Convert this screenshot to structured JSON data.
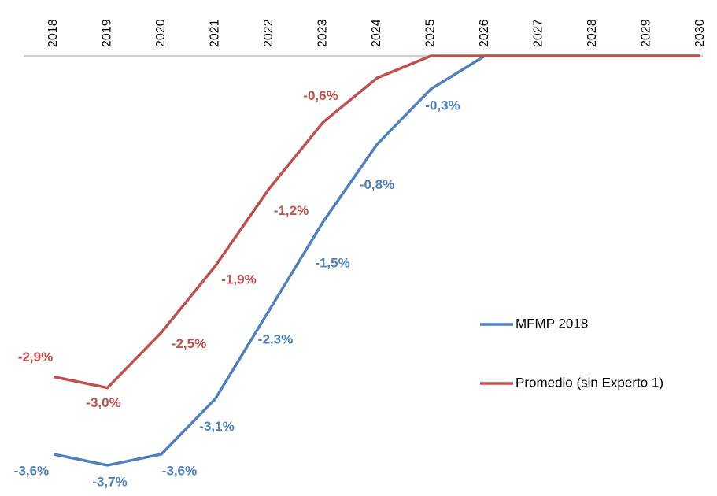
{
  "chart_data": {
    "type": "line",
    "categories": [
      "2018",
      "2019",
      "2020",
      "2021",
      "2022",
      "2023",
      "2024",
      "2025",
      "2026",
      "2027",
      "2028",
      "2029",
      "2030"
    ],
    "ylim": [
      -3.8,
      0
    ],
    "legend": "right",
    "series": [
      {
        "name": "MFMP 2018",
        "color": "#4f81bd",
        "values": [
          -3.6,
          -3.7,
          -3.6,
          -3.1,
          -2.3,
          -1.5,
          -0.8,
          -0.3,
          0,
          0,
          0,
          0,
          0
        ],
        "value_labels": [
          "-3,6%",
          "-3,7%",
          "-3,6%",
          "-3,1%",
          "-2,3%",
          "-1,5%",
          "-0,8%",
          "-0,3%",
          null,
          null,
          null,
          null,
          null
        ]
      },
      {
        "name": "Promedio (sin Experto 1)",
        "color": "#c0504d",
        "values": [
          -2.9,
          -3.0,
          -2.5,
          -1.9,
          -1.2,
          -0.6,
          -0.2,
          0,
          0,
          0,
          0,
          0,
          0
        ],
        "value_labels": [
          "-2,9%",
          "-3,0%",
          "-2,5%",
          "-1,9%",
          "-1,2%",
          "-0,6%",
          null,
          null,
          null,
          null,
          null,
          null,
          null
        ]
      }
    ]
  }
}
